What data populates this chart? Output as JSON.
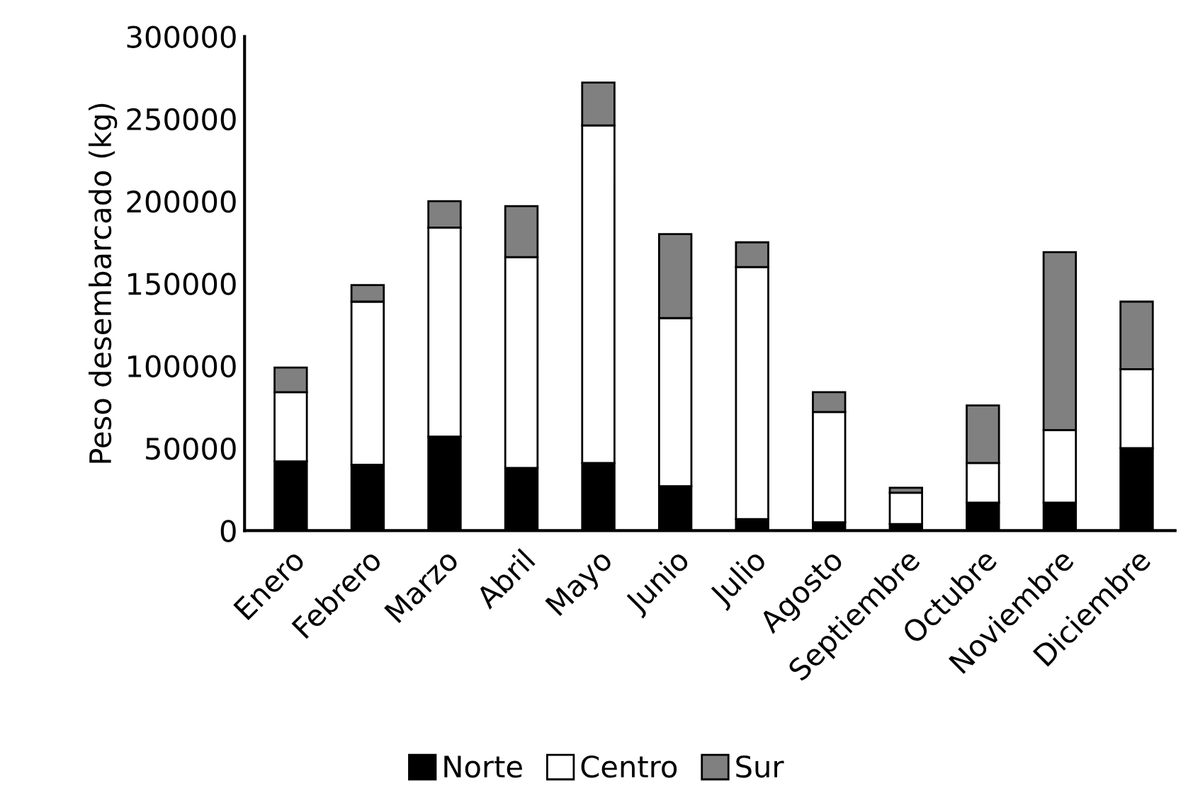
{
  "chart_data": {
    "type": "bar",
    "stacked": true,
    "ylabel": "Peso desembarcado (kg)",
    "categories": [
      "Enero",
      "Febrero",
      "Marzo",
      "Abril",
      "Mayo",
      "Junio",
      "Julio",
      "Agosto",
      "Septiembre",
      "Octubre",
      "Noviembre",
      "Diciembre"
    ],
    "series": [
      {
        "name": "Norte",
        "color": "#000000",
        "values": [
          42000,
          40000,
          57000,
          38000,
          41000,
          27000,
          7000,
          5000,
          4000,
          17000,
          17000,
          50000
        ]
      },
      {
        "name": "Centro",
        "color": "#ffffff",
        "values": [
          42000,
          99000,
          127000,
          128000,
          205000,
          102000,
          153000,
          67000,
          19000,
          24000,
          44000,
          48000
        ]
      },
      {
        "name": "Sur",
        "color": "#808080",
        "values": [
          15000,
          10000,
          16000,
          31000,
          26000,
          51000,
          15000,
          12000,
          3000,
          35000,
          108000,
          41000
        ]
      }
    ],
    "ylim": [
      0,
      300000
    ],
    "yticks": [
      0,
      50000,
      100000,
      150000,
      200000,
      250000,
      300000
    ],
    "grid": false,
    "legend": "bottom"
  }
}
